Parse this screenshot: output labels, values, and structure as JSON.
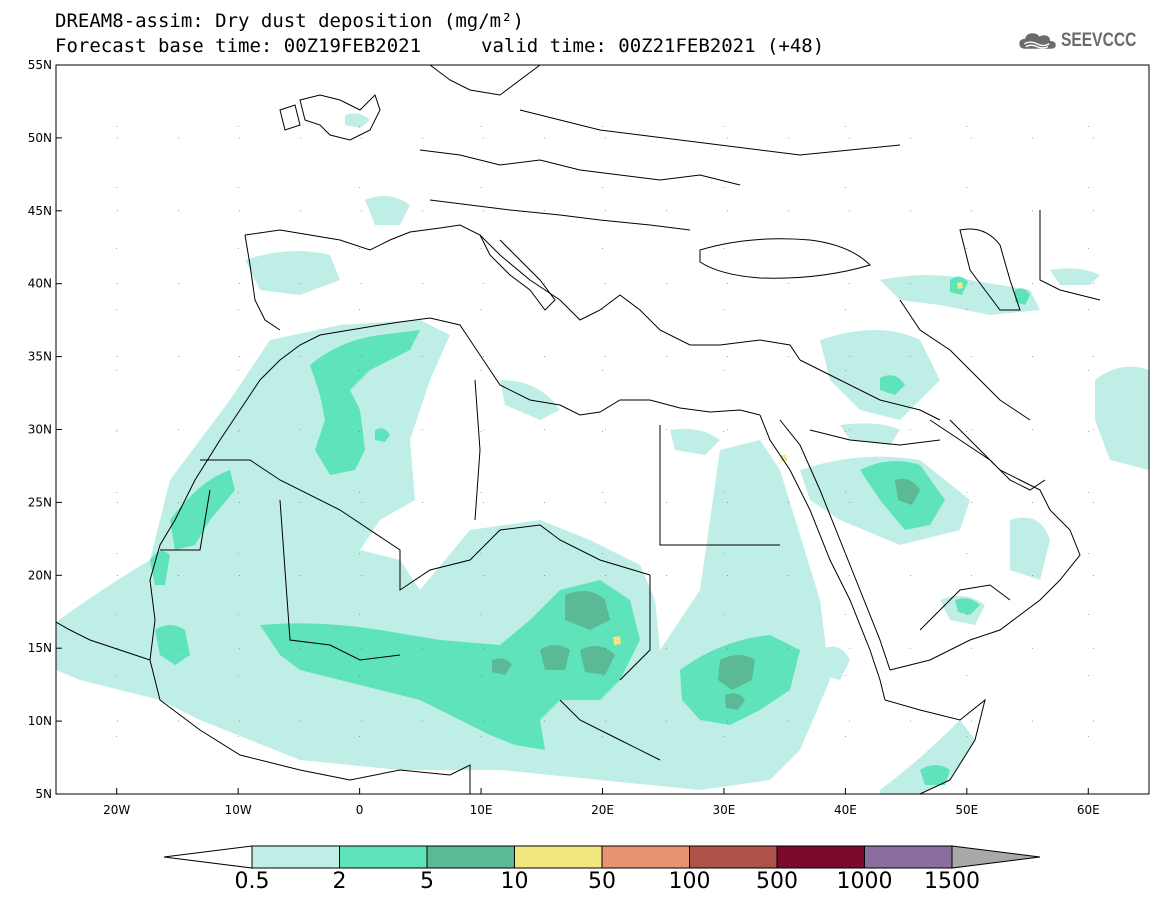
{
  "header": {
    "title_line1": "DREAM8-assim: Dry dust deposition (mg/m²)",
    "title_line2": "Forecast base time: 00Z19FEB2021",
    "valid_time": "valid time: 00Z21FEB2021 (+48)"
  },
  "logo": {
    "text": "SEEVCCC",
    "icon": "cloud-icon",
    "color": "#6b6b6b"
  },
  "map": {
    "lat_labels": [
      "55N",
      "50N",
      "45N",
      "40N",
      "35N",
      "30N",
      "25N",
      "20N",
      "15N",
      "10N",
      "5N"
    ],
    "lon_labels": [
      "20W",
      "10W",
      "0",
      "10E",
      "20E",
      "30E",
      "40E",
      "50E",
      "60E"
    ],
    "lat_range": [
      5,
      55
    ],
    "lon_range": [
      -25,
      65
    ]
  },
  "colorbar": {
    "labels": [
      "0.5",
      "2",
      "5",
      "10",
      "50",
      "100",
      "500",
      "1000",
      "1500"
    ],
    "colors": [
      "#bfeee6",
      "#5ee3bb",
      "#5bb995",
      "#f2e77e",
      "#e99371",
      "#b0514a",
      "#7b0a2c",
      "#8c6d9f"
    ],
    "under_color": "#ffffff",
    "over_color": "#a9a9a9"
  }
}
